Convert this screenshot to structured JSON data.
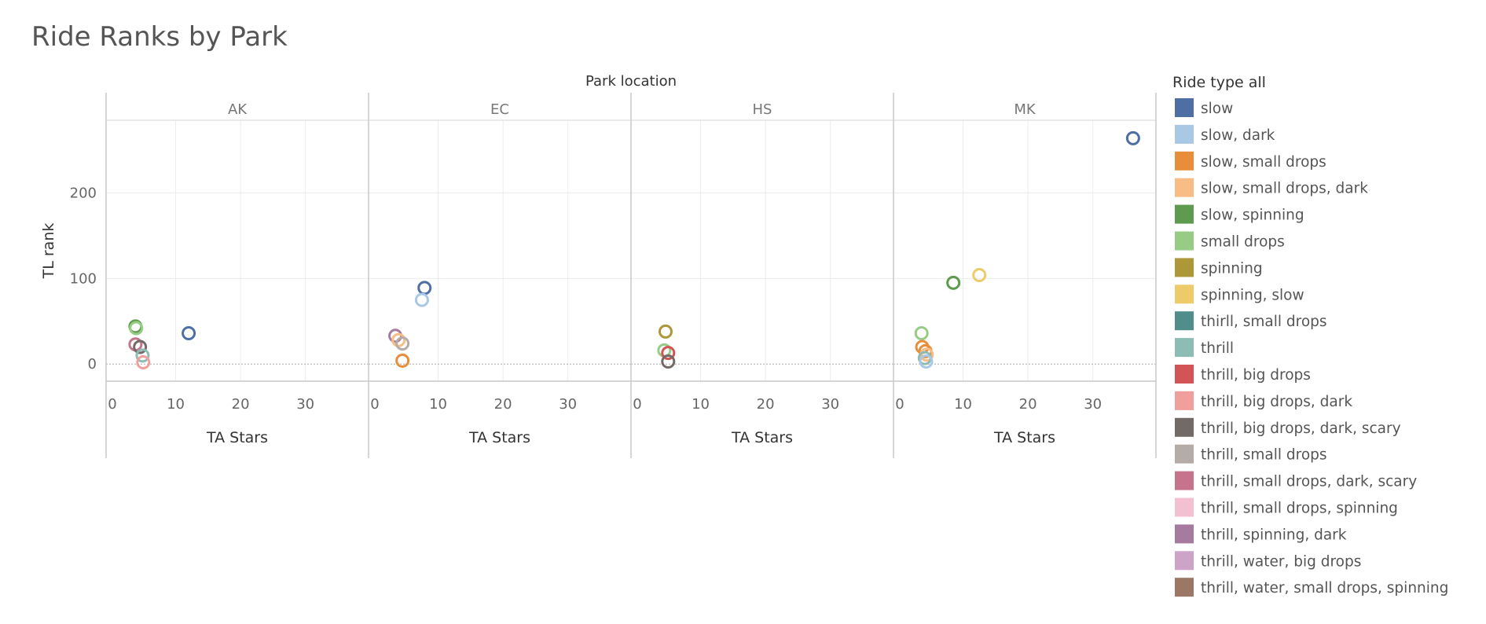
{
  "title": "Ride Ranks by Park",
  "chart_data": {
    "type": "scatter",
    "title": "Ride Ranks by Park",
    "column_header": "Park location",
    "xlabel": "TA Stars",
    "ylabel": "TL rank",
    "xlim": [
      0,
      39
    ],
    "ylim": [
      -20,
      285
    ],
    "xticks": [
      0,
      10,
      20,
      30
    ],
    "yticks": [
      0,
      100,
      200
    ],
    "grid": true,
    "legend_title": "Ride type all",
    "legend_position": "right",
    "panels": [
      {
        "name": "AK",
        "points": [
          {
            "x": 3.8,
            "y": 44,
            "type": "slow, spinning"
          },
          {
            "x": 3.9,
            "y": 42,
            "type": "small drops"
          },
          {
            "x": 3.8,
            "y": 23,
            "type": "thrill, small drops, dark, scary"
          },
          {
            "x": 4.5,
            "y": 20,
            "type": "thrill, big drops, dark, scary"
          },
          {
            "x": 4.9,
            "y": 10,
            "type": "thrill"
          },
          {
            "x": 5.0,
            "y": 2,
            "type": "thrill, big drops, dark"
          },
          {
            "x": 12.0,
            "y": 36,
            "type": "slow"
          }
        ]
      },
      {
        "name": "EC",
        "points": [
          {
            "x": 7.9,
            "y": 89,
            "type": "slow"
          },
          {
            "x": 7.5,
            "y": 75,
            "type": "slow, dark"
          },
          {
            "x": 3.4,
            "y": 33,
            "type": "thrill, spinning, dark"
          },
          {
            "x": 3.9,
            "y": 28,
            "type": "slow, small drops, dark"
          },
          {
            "x": 4.5,
            "y": 24,
            "type": "thrill, small drops"
          },
          {
            "x": 4.5,
            "y": 4,
            "type": "slow, small drops"
          }
        ]
      },
      {
        "name": "HS",
        "points": [
          {
            "x": 4.6,
            "y": 38,
            "type": "spinning"
          },
          {
            "x": 4.4,
            "y": 16,
            "type": "small drops"
          },
          {
            "x": 5.0,
            "y": 13,
            "type": "thrill, big drops"
          },
          {
            "x": 5.0,
            "y": 3,
            "type": "thrill, big drops, dark, scary"
          }
        ]
      },
      {
        "name": "MK",
        "points": [
          {
            "x": 36.2,
            "y": 264,
            "type": "slow"
          },
          {
            "x": 12.5,
            "y": 104,
            "type": "spinning, slow"
          },
          {
            "x": 8.5,
            "y": 95,
            "type": "slow, spinning"
          },
          {
            "x": 3.6,
            "y": 36,
            "type": "small drops"
          },
          {
            "x": 3.7,
            "y": 20,
            "type": "slow, small drops"
          },
          {
            "x": 4.2,
            "y": 15,
            "type": "slow, small drops"
          },
          {
            "x": 4.4,
            "y": 11,
            "type": "slow, small drops, dark"
          },
          {
            "x": 4.1,
            "y": 7,
            "type": "thrill"
          },
          {
            "x": 4.3,
            "y": 3,
            "type": "slow, dark"
          }
        ]
      }
    ],
    "legend": [
      {
        "label": "slow",
        "color": "#4e6fa3"
      },
      {
        "label": "slow, dark",
        "color": "#a9c8e6"
      },
      {
        "label": "slow, small drops",
        "color": "#e88e3a"
      },
      {
        "label": "slow, small drops, dark",
        "color": "#f7bd84"
      },
      {
        "label": "slow, spinning",
        "color": "#5e9b4e"
      },
      {
        "label": "small drops",
        "color": "#97cc85"
      },
      {
        "label": "spinning",
        "color": "#ad9738"
      },
      {
        "label": "spinning, slow",
        "color": "#eccb68"
      },
      {
        "label": "thirll, small drops",
        "color": "#4f8e8a"
      },
      {
        "label": "thrill",
        "color": "#8cbcb3"
      },
      {
        "label": "thrill, big drops",
        "color": "#d35454"
      },
      {
        "label": "thrill, big drops, dark",
        "color": "#f19f9c"
      },
      {
        "label": "thrill, big drops, dark, scary",
        "color": "#736a67"
      },
      {
        "label": "thrill, small drops",
        "color": "#b6aca7"
      },
      {
        "label": "thrill, small drops, dark, scary",
        "color": "#c6738e"
      },
      {
        "label": "thrill, small drops, spinning",
        "color": "#f3c0d2"
      },
      {
        "label": "thrill, spinning, dark",
        "color": "#a67b9f"
      },
      {
        "label": "thrill, water, big drops",
        "color": "#cea3c8"
      },
      {
        "label": "thrill, water, small drops, spinning",
        "color": "#9c7765"
      }
    ]
  }
}
